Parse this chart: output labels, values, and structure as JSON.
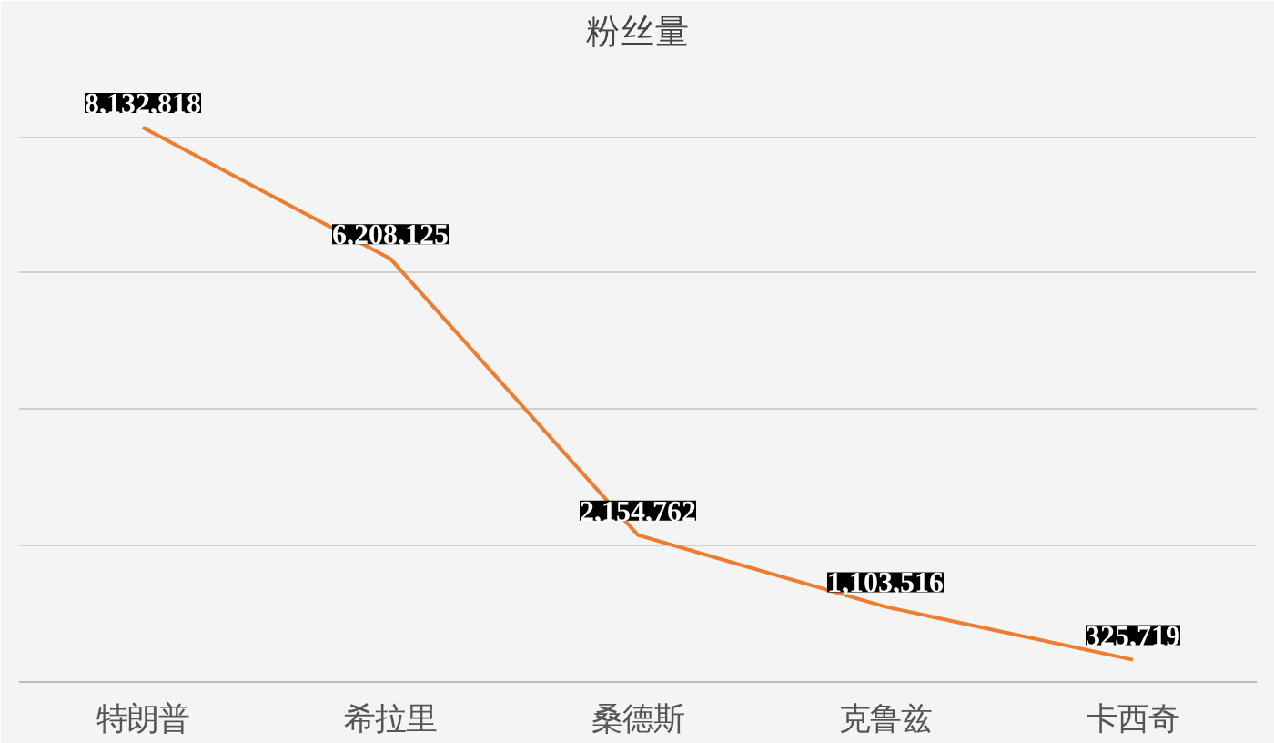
{
  "chart_data": {
    "type": "line",
    "title": "粉丝量",
    "categories": [
      "特朗普",
      "希拉里",
      "桑德斯",
      "克鲁兹",
      "卡西奇"
    ],
    "series": [
      {
        "color": "#ed7d31",
        "values": [
          8132818,
          6208125,
          2154762,
          1103516,
          325719
        ],
        "value_labels": [
          "8,132,818",
          "6,208,125",
          "2,154,762",
          "1,103,516",
          "325,719"
        ]
      }
    ],
    "tick_labels": "x",
    "grid": "y",
    "line_style": "solid"
  }
}
